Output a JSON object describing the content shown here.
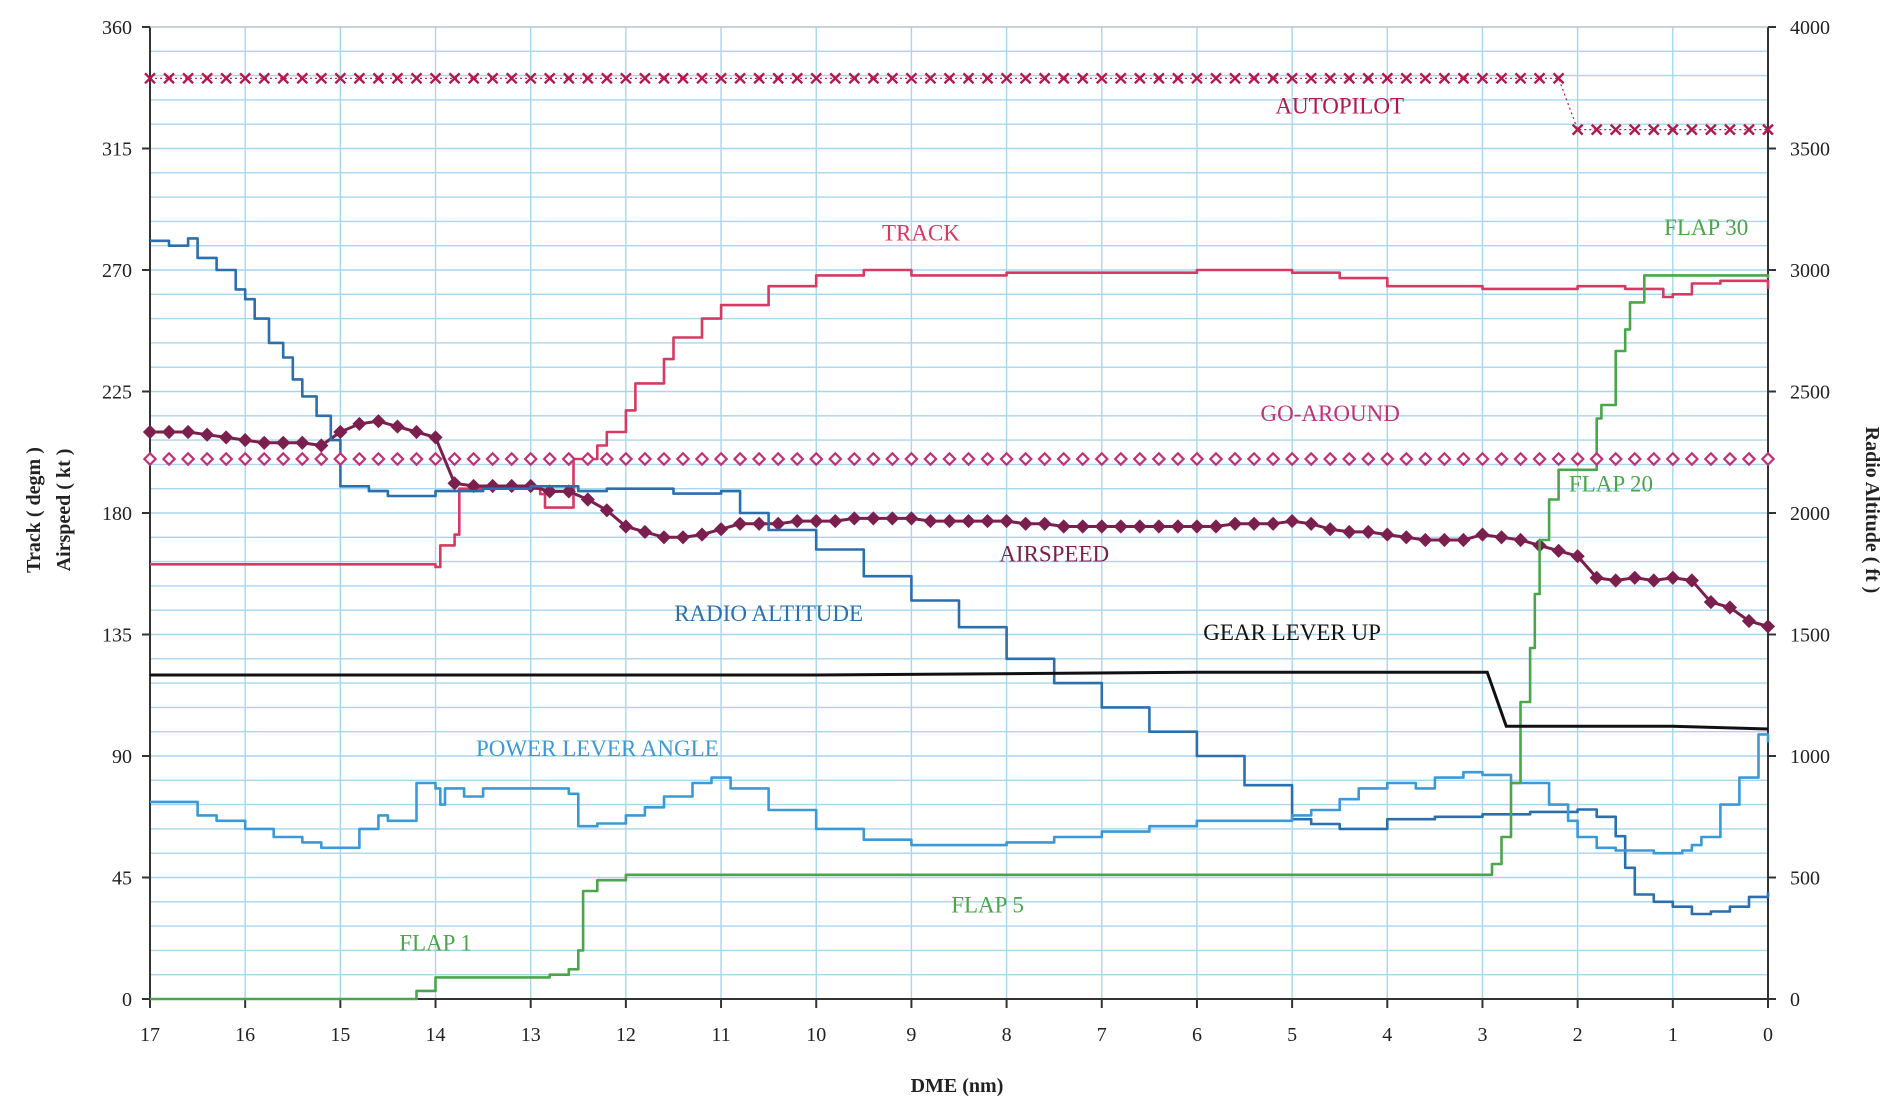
{
  "chart_data": {
    "type": "line",
    "xlabel": "DME (nm)",
    "ylabel_left_line1": "Track ( degm )",
    "ylabel_left_line2": "Airspeed ( kt )",
    "ylabel_right": "Radio Altitude ( ft )",
    "xlim": [
      17,
      0
    ],
    "ylim_left": [
      0,
      360
    ],
    "ylim_right": [
      0,
      4000
    ],
    "x_ticks": [
      17,
      16,
      15,
      14,
      13,
      12,
      11,
      10,
      9,
      8,
      7,
      6,
      5,
      4,
      3,
      2,
      1,
      0
    ],
    "y_left_ticks": [
      0,
      45,
      90,
      135,
      180,
      225,
      270,
      315,
      360
    ],
    "y_right_ticks": [
      0,
      500,
      1000,
      1500,
      2000,
      2500,
      3000,
      3500,
      4000
    ],
    "grid": true,
    "annotations": [
      {
        "text": "AUTOPILOT",
        "x": 4.5,
        "y": 328,
        "series": "autopilot"
      },
      {
        "text": "TRACK",
        "x": 8.9,
        "y": 281,
        "series": "track"
      },
      {
        "text": "FLAP 30",
        "x": 0.65,
        "y": 283,
        "series": "flap"
      },
      {
        "text": "GO-AROUND",
        "x": 4.6,
        "y": 214,
        "series": "go_around"
      },
      {
        "text": "FLAP 20",
        "x": 1.65,
        "y": 188,
        "series": "flap"
      },
      {
        "text": "AIRSPEED",
        "x": 7.5,
        "y": 162,
        "series": "airspeed"
      },
      {
        "text": "RADIO ALTITUDE",
        "x": 10.5,
        "y": 140,
        "series": "radio_altitude"
      },
      {
        "text": "GEAR LEVER UP",
        "x": 5.0,
        "y": 133,
        "series": "gear"
      },
      {
        "text": "POWER LEVER ANGLE",
        "x": 12.3,
        "y": 90,
        "series": "power_lever_angle"
      },
      {
        "text": "FLAP 5",
        "x": 8.2,
        "y": 32,
        "series": "flap"
      },
      {
        "text": "FLAP 1",
        "x": 14.0,
        "y": 18,
        "series": "flap"
      }
    ],
    "colors": {
      "track": "#d63a62",
      "airspeed": "#7a1f4e",
      "radio_altitude": "#2a6fae",
      "power_lever_angle": "#3a9ad8",
      "flap": "#4aa64a",
      "gear": "#111111",
      "autopilot": "#b3184a",
      "go_around": "#c2307a",
      "grid": "#a7d6ef",
      "axis_text": "#222222"
    },
    "series": [
      {
        "id": "track",
        "axis": "left",
        "kind": "step",
        "x": [
          17,
          14,
          13.95,
          13.8,
          13.75,
          12.9,
          12.85,
          12.6,
          12.55,
          12.3,
          12.2,
          12.0,
          11.9,
          11.6,
          11.5,
          11.2,
          11.0,
          10.5,
          10.0,
          9.5,
          9.0,
          8.0,
          7.0,
          6.0,
          5.5,
          5.0,
          4.5,
          4.0,
          3.0,
          2.0,
          1.5,
          1.1,
          1.0,
          0.8,
          0.5,
          0
        ],
        "y": [
          161,
          160,
          168,
          172,
          189,
          187,
          182,
          182,
          200,
          205,
          210,
          218,
          228,
          237,
          245,
          252,
          257,
          264,
          268,
          270,
          268,
          269,
          269,
          270,
          270,
          269,
          267,
          264,
          263,
          264,
          263,
          260,
          261,
          265,
          266,
          263
        ]
      },
      {
        "id": "airspeed",
        "axis": "left",
        "kind": "markers",
        "x": [
          17,
          16.8,
          16.6,
          16.4,
          16.2,
          16.0,
          15.8,
          15.6,
          15.4,
          15.2,
          15.0,
          14.8,
          14.6,
          14.4,
          14.2,
          14.0,
          13.8,
          13.6,
          13.4,
          13.2,
          13.0,
          12.8,
          12.6,
          12.4,
          12.2,
          12.0,
          11.8,
          11.6,
          11.4,
          11.2,
          11.0,
          10.8,
          10.6,
          10.4,
          10.2,
          10.0,
          9.8,
          9.6,
          9.4,
          9.2,
          9.0,
          8.8,
          8.6,
          8.4,
          8.2,
          8.0,
          7.8,
          7.6,
          7.4,
          7.2,
          7.0,
          6.8,
          6.6,
          6.4,
          6.2,
          6.0,
          5.8,
          5.6,
          5.4,
          5.2,
          5.0,
          4.8,
          4.6,
          4.4,
          4.2,
          4.0,
          3.8,
          3.6,
          3.4,
          3.2,
          3.0,
          2.8,
          2.6,
          2.4,
          2.2,
          2.0,
          1.8,
          1.6,
          1.4,
          1.2,
          1.0,
          0.8,
          0.6,
          0.4,
          0.2,
          0
        ],
        "y": [
          210,
          210,
          210,
          209,
          208,
          207,
          206,
          206,
          206,
          205,
          210,
          213,
          214,
          212,
          210,
          208,
          191,
          190,
          190,
          190,
          190,
          188,
          188,
          185,
          181,
          175,
          173,
          171,
          171,
          172,
          174,
          176,
          176,
          176,
          177,
          177,
          177,
          178,
          178,
          178,
          178,
          177,
          177,
          177,
          177,
          177,
          176,
          176,
          175,
          175,
          175,
          175,
          175,
          175,
          175,
          175,
          175,
          176,
          176,
          176,
          177,
          176,
          174,
          173,
          173,
          172,
          171,
          170,
          170,
          170,
          172,
          171,
          170,
          168,
          166,
          164,
          156,
          155,
          156,
          155,
          156,
          155,
          147,
          145,
          140,
          138
        ]
      },
      {
        "id": "radio_altitude",
        "axis": "right",
        "kind": "step",
        "x": [
          17,
          16.8,
          16.6,
          16.5,
          16.3,
          16.1,
          16.0,
          15.9,
          15.75,
          15.6,
          15.5,
          15.4,
          15.25,
          15.1,
          15.0,
          14.7,
          14.5,
          14.0,
          13.5,
          13.0,
          12.5,
          12.2,
          12.0,
          11.5,
          11.0,
          10.8,
          10.5,
          10.0,
          9.5,
          9.0,
          8.5,
          8.0,
          7.5,
          7.0,
          6.5,
          6.0,
          5.5,
          5.0,
          4.8,
          4.5,
          4.0,
          3.5,
          3.0,
          2.5,
          2.0,
          1.8,
          1.6,
          1.5,
          1.4,
          1.2,
          1.0,
          0.8,
          0.6,
          0.4,
          0.2,
          0
        ],
        "y": [
          3120,
          3100,
          3130,
          3050,
          3000,
          2920,
          2880,
          2800,
          2700,
          2640,
          2550,
          2480,
          2400,
          2300,
          2110,
          2090,
          2070,
          2090,
          2100,
          2110,
          2090,
          2100,
          2100,
          2080,
          2090,
          2000,
          1930,
          1850,
          1740,
          1640,
          1530,
          1400,
          1300,
          1200,
          1100,
          1000,
          880,
          740,
          720,
          700,
          740,
          750,
          760,
          770,
          780,
          750,
          670,
          540,
          430,
          400,
          380,
          350,
          360,
          380,
          420,
          440
        ]
      },
      {
        "id": "power_lever_angle",
        "axis": "left",
        "kind": "step",
        "x": [
          17,
          16.6,
          16.5,
          16.3,
          16.0,
          15.7,
          15.4,
          15.2,
          15.0,
          14.8,
          14.6,
          14.5,
          14.2,
          14.0,
          13.95,
          13.9,
          13.7,
          13.5,
          13.0,
          12.6,
          12.5,
          12.3,
          12.0,
          11.8,
          11.6,
          11.3,
          11.1,
          10.9,
          10.5,
          10.0,
          9.5,
          9.0,
          8.5,
          8.0,
          7.5,
          7.0,
          6.5,
          6.0,
          5.5,
          5.0,
          4.8,
          4.5,
          4.3,
          4.0,
          3.7,
          3.5,
          3.2,
          3.0,
          2.7,
          2.5,
          2.3,
          2.1,
          2.0,
          1.8,
          1.6,
          1.4,
          1.2,
          1.0,
          0.9,
          0.8,
          0.7,
          0.5,
          0.3,
          0.1,
          0
        ],
        "y": [
          73,
          73,
          68,
          66,
          63,
          60,
          58,
          56,
          56,
          63,
          68,
          66,
          80,
          78,
          72,
          78,
          75,
          78,
          78,
          76,
          64,
          65,
          68,
          71,
          75,
          80,
          82,
          78,
          70,
          63,
          59,
          57,
          57,
          58,
          60,
          62,
          64,
          66,
          66,
          68,
          70,
          74,
          78,
          80,
          78,
          82,
          84,
          83,
          80,
          80,
          72,
          66,
          60,
          56,
          55,
          55,
          54,
          54,
          55,
          57,
          60,
          72,
          82,
          98,
          95
        ]
      },
      {
        "id": "flap",
        "axis": "left",
        "kind": "step",
        "x": [
          17,
          14.4,
          14.2,
          14.0,
          13.5,
          12.8,
          12.6,
          12.5,
          12.45,
          12.3,
          12.0,
          11.0,
          10.0,
          5.0,
          3.0,
          2.9,
          2.8,
          2.7,
          2.6,
          2.5,
          2.45,
          2.4,
          2.3,
          2.2,
          2.0,
          1.85,
          1.8,
          1.75,
          1.6,
          1.5,
          1.45,
          1.3,
          1.0,
          0.5,
          0
        ],
        "y": [
          0,
          0,
          3,
          8,
          8,
          9,
          11,
          18,
          40,
          44,
          46,
          46,
          46,
          46,
          46,
          50,
          60,
          80,
          110,
          130,
          150,
          170,
          185,
          196,
          196,
          196,
          215,
          220,
          240,
          248,
          258,
          268,
          268,
          268,
          267
        ]
      },
      {
        "id": "gear",
        "axis": "left",
        "kind": "line",
        "x": [
          17,
          14,
          10,
          6,
          3,
          2.95,
          2.75,
          2.5,
          1.0,
          0
        ],
        "y": [
          120,
          120,
          120,
          121,
          121,
          121,
          101,
          101,
          101,
          100
        ]
      },
      {
        "id": "autopilot",
        "axis": "left",
        "kind": "markers_x",
        "x": [
          17,
          16.8,
          16.6,
          16.4,
          16.2,
          16.0,
          15.8,
          15.6,
          15.4,
          15.2,
          15.0,
          14.8,
          14.6,
          14.4,
          14.2,
          14.0,
          13.8,
          13.6,
          13.4,
          13.2,
          13.0,
          12.8,
          12.6,
          12.4,
          12.2,
          12.0,
          11.8,
          11.6,
          11.4,
          11.2,
          11.0,
          10.8,
          10.6,
          10.4,
          10.2,
          10.0,
          9.8,
          9.6,
          9.4,
          9.2,
          9.0,
          8.8,
          8.6,
          8.4,
          8.2,
          8.0,
          7.8,
          7.6,
          7.4,
          7.2,
          7.0,
          6.8,
          6.6,
          6.4,
          6.2,
          6.0,
          5.8,
          5.6,
          5.4,
          5.2,
          5.0,
          4.8,
          4.6,
          4.4,
          4.2,
          4.0,
          3.8,
          3.6,
          3.4,
          3.2,
          3.0,
          2.8,
          2.6,
          2.4,
          2.2,
          2.0,
          1.8,
          1.6,
          1.4,
          1.2,
          1.0,
          0.8,
          0.6,
          0.4,
          0.2,
          0
        ],
        "y": [
          341,
          341,
          341,
          341,
          341,
          341,
          341,
          341,
          341,
          341,
          341,
          341,
          341,
          341,
          341,
          341,
          341,
          341,
          341,
          341,
          341,
          341,
          341,
          341,
          341,
          341,
          341,
          341,
          341,
          341,
          341,
          341,
          341,
          341,
          341,
          341,
          341,
          341,
          341,
          341,
          341,
          341,
          341,
          341,
          341,
          341,
          341,
          341,
          341,
          341,
          341,
          341,
          341,
          341,
          341,
          341,
          341,
          341,
          341,
          341,
          341,
          341,
          341,
          341,
          341,
          341,
          341,
          341,
          341,
          341,
          341,
          341,
          341,
          341,
          341,
          322,
          322,
          322,
          322,
          322,
          322,
          322,
          322,
          322,
          322,
          322
        ]
      },
      {
        "id": "go_around",
        "axis": "left",
        "kind": "markers_diamond",
        "x": [
          17,
          16.8,
          16.6,
          16.4,
          16.2,
          16.0,
          15.8,
          15.6,
          15.4,
          15.2,
          15.0,
          14.8,
          14.6,
          14.4,
          14.2,
          14.0,
          13.8,
          13.6,
          13.4,
          13.2,
          13.0,
          12.8,
          12.6,
          12.4,
          12.2,
          12.0,
          11.8,
          11.6,
          11.4,
          11.2,
          11.0,
          10.8,
          10.6,
          10.4,
          10.2,
          10.0,
          9.8,
          9.6,
          9.4,
          9.2,
          9.0,
          8.8,
          8.6,
          8.4,
          8.2,
          8.0,
          7.8,
          7.6,
          7.4,
          7.2,
          7.0,
          6.8,
          6.6,
          6.4,
          6.2,
          6.0,
          5.8,
          5.6,
          5.4,
          5.2,
          5.0,
          4.8,
          4.6,
          4.4,
          4.2,
          4.0,
          3.8,
          3.6,
          3.4,
          3.2,
          3.0,
          2.8,
          2.6,
          2.4,
          2.2,
          2.0,
          1.8,
          1.6,
          1.4,
          1.2,
          1.0,
          0.8,
          0.6,
          0.4,
          0.2,
          0
        ],
        "y": [
          200,
          200,
          200,
          200,
          200,
          200,
          200,
          200,
          200,
          200,
          200,
          200,
          200,
          200,
          200,
          200,
          200,
          200,
          200,
          200,
          200,
          200,
          200,
          200,
          200,
          200,
          200,
          200,
          200,
          200,
          200,
          200,
          200,
          200,
          200,
          200,
          200,
          200,
          200,
          200,
          200,
          200,
          200,
          200,
          200,
          200,
          200,
          200,
          200,
          200,
          200,
          200,
          200,
          200,
          200,
          200,
          200,
          200,
          200,
          200,
          200,
          200,
          200,
          200,
          200,
          200,
          200,
          200,
          200,
          200,
          200,
          200,
          200,
          200,
          200,
          200,
          200,
          200,
          200,
          200,
          200,
          200,
          200,
          200,
          200,
          200
        ]
      }
    ]
  }
}
